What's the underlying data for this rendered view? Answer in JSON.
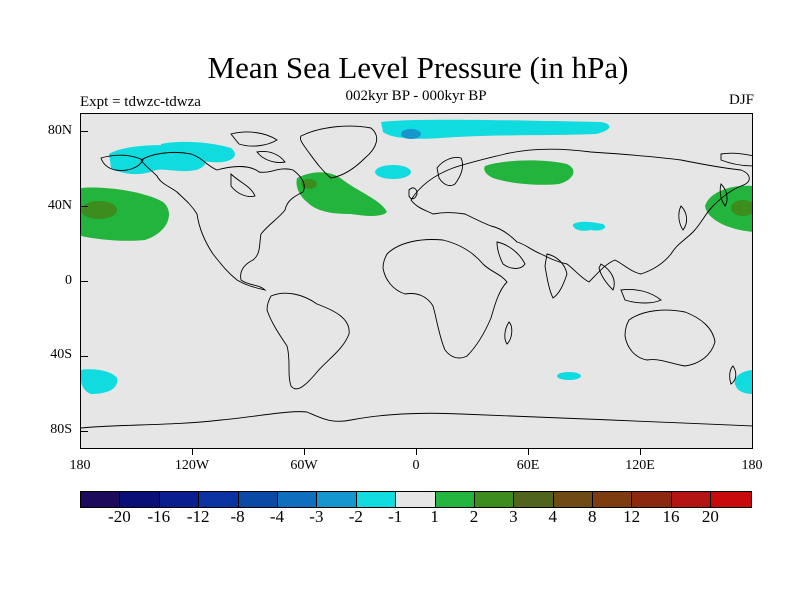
{
  "title": "Mean Sea Level Pressure (in hPa)",
  "subtitle": "002kyr BP - 000kyr BP",
  "left_label": "Expt = tdwzc-tdwza",
  "right_label": "DJF",
  "lat_labels": [
    "80N",
    "40N",
    "0",
    "40S",
    "80S"
  ],
  "lon_labels": [
    "180",
    "120W",
    "60W",
    "0",
    "60E",
    "120E",
    "180"
  ],
  "colorbar": {
    "colors": [
      "#1e0a5a",
      "#0a0f78",
      "#0b1e90",
      "#0a32a0",
      "#0a4aa6",
      "#0f6ebe",
      "#1596cc",
      "#10dce0",
      "#e6e6e6",
      "#22b43c",
      "#3c8c1e",
      "#50641e",
      "#6e4a14",
      "#7d3c0f",
      "#8c2810",
      "#b41414",
      "#c80a0a"
    ],
    "labels": [
      "-20",
      "-16",
      "-12",
      "-8",
      "-4",
      "-3",
      "-2",
      "-1",
      "1",
      "2",
      "3",
      "4",
      "8",
      "12",
      "16",
      "20"
    ]
  },
  "palette": {
    "ocean_land_bg": "#e6e6e6",
    "neg_1_2": "#10dce0",
    "neg_2_3": "#1596cc",
    "pos_1_2": "#22b43c",
    "pos_2_3": "#3c8c1e",
    "pos_3_4": "#50641e"
  }
}
